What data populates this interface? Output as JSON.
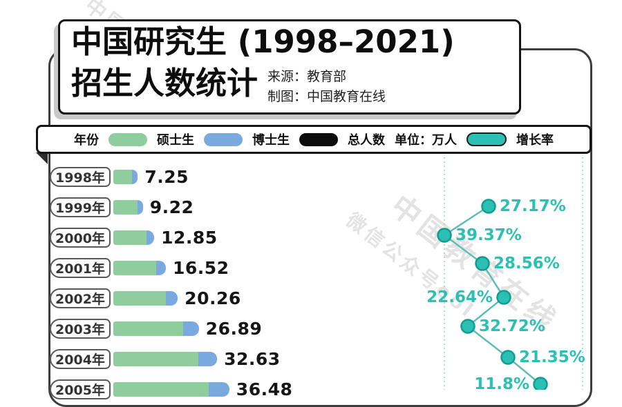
{
  "title": {
    "line1": "中国研究生 (1998–2021)",
    "line2": "招生人数统计",
    "source": "来源：教育部",
    "credit": "制图：中国教育在线"
  },
  "legend": {
    "year_label": "年份",
    "items": [
      {
        "label": "硕士生",
        "color": "#8fcd9c"
      },
      {
        "label": "博士生",
        "color": "#7aa9e0"
      },
      {
        "label": "总人数",
        "color": "#0c0c0c"
      }
    ],
    "unit_label": "单位：万人",
    "growth": {
      "label": "增长率",
      "color": "#2cbfb3"
    }
  },
  "chart_data": {
    "type": "bar",
    "title": "中国研究生 (1998–2021) 招生人数统计",
    "unit": "万人",
    "categories": [
      "1998年",
      "1999年",
      "2000年",
      "2001年",
      "2002年",
      "2003年",
      "2004年",
      "2005年"
    ],
    "series": [
      {
        "name": "总人数(万人)",
        "values": [
          7.25,
          9.22,
          12.85,
          16.52,
          20.26,
          26.89,
          32.63,
          36.48
        ]
      },
      {
        "name": "增长率(%)",
        "values": [
          null,
          27.17,
          39.37,
          28.56,
          22.64,
          32.72,
          21.35,
          11.8
        ]
      }
    ],
    "legend_entries": [
      "硕士生",
      "博士生",
      "总人数",
      "增长率"
    ],
    "layout": {
      "orientation": "horizontal-bars",
      "growth_line": "right-panel",
      "grid": "dashed-teal-guides"
    },
    "note_visible_range": "rows 1998–2005 visible, chart continues below fold"
  },
  "colors": {
    "masters_green": "#8fcd9c",
    "doctoral_blue": "#7aa9e0",
    "total_black": "#0c0c0c",
    "growth_teal": "#2cbfb3",
    "growth_line": "#5bbdb4",
    "dashed_guide": "#8fd8d2"
  },
  "watermarks": [
    "中国教育在线",
    "中国教育在线",
    "微信公众号eol"
  ]
}
